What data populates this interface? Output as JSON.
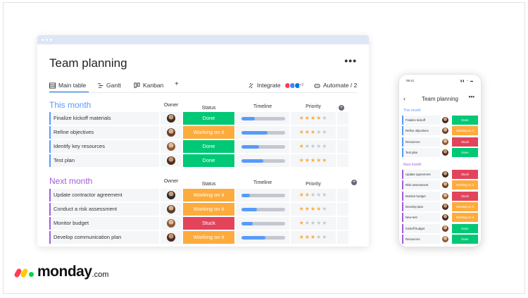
{
  "desktop": {
    "title": "Team planning",
    "more": "•••",
    "tabs": [
      {
        "label": "Main table",
        "icon": "table-icon"
      },
      {
        "label": "Gantt",
        "icon": "gantt-icon"
      },
      {
        "label": "Kanban",
        "icon": "kanban-icon"
      }
    ],
    "add_tab": "+",
    "integrate": "Integrate",
    "integrate_count": "+2",
    "automate": "Automate / 2",
    "columns": {
      "owner": "Owner",
      "status": "Status",
      "timeline": "Timeline",
      "priority": "Priority"
    },
    "groups": [
      {
        "title": "This month",
        "color": "#579bfc",
        "rows": [
          {
            "name": "Finalize kickoff materials",
            "status": "Done",
            "status_color": "#00c875",
            "timeline": 0.3,
            "priority": 4
          },
          {
            "name": "Refine objectives",
            "status": "Working on it",
            "status_color": "#fdab3d",
            "timeline": 0.6,
            "priority": 3
          },
          {
            "name": "Identify key resources",
            "status": "Done",
            "status_color": "#00c875",
            "timeline": 0.4,
            "priority": 1
          },
          {
            "name": "Test plan",
            "status": "Done",
            "status_color": "#00c875",
            "timeline": 0.5,
            "priority": 5
          }
        ]
      },
      {
        "title": "Next month",
        "color": "#a25ddc",
        "rows": [
          {
            "name": "Update contractor agreement",
            "status": "Working on it",
            "status_color": "#fdab3d",
            "timeline": 0.2,
            "priority": 2
          },
          {
            "name": "Conduct a risk assessment",
            "status": "Working on it",
            "status_color": "#fdab3d",
            "timeline": 0.35,
            "priority": 4
          },
          {
            "name": "Monitor budget",
            "status": "Stuck",
            "status_color": "#e2445c",
            "timeline": 0.25,
            "priority": 1
          },
          {
            "name": "Develop communication plan",
            "status": "Working on it",
            "status_color": "#fdab3d",
            "timeline": 0.55,
            "priority": 3
          }
        ]
      }
    ]
  },
  "phone": {
    "time": "09:41",
    "signal": "▮▮ ◔ ▬",
    "back": "‹",
    "title": "Team planning",
    "more": "•••",
    "groups": [
      {
        "title": "This month",
        "color": "#579bfc",
        "rows": [
          {
            "name": "Finalize kickoff",
            "status": "Done",
            "status_color": "#00c875"
          },
          {
            "name": "Refine objectives",
            "status": "Working on it",
            "status_color": "#fdab3d"
          },
          {
            "name": "Resources",
            "status": "Stuck",
            "status_color": "#e2445c"
          },
          {
            "name": "Test plan",
            "status": "Done",
            "status_color": "#00c875"
          }
        ]
      },
      {
        "title": "Next month",
        "color": "#a25ddc",
        "rows": [
          {
            "name": "Update agreement",
            "status": "Stuck",
            "status_color": "#e2445c"
          },
          {
            "name": "Risk assessment",
            "status": "Working on it",
            "status_color": "#fdab3d"
          },
          {
            "name": "Monitor budget",
            "status": "Stuck",
            "status_color": "#e2445c"
          },
          {
            "name": "Develop plan",
            "status": "Working on it",
            "status_color": "#fdab3d"
          },
          {
            "name": "New test",
            "status": "Working on it",
            "status_color": "#fdab3d"
          },
          {
            "name": "Kickoff budget",
            "status": "Done",
            "status_color": "#00c875"
          },
          {
            "name": "Resources",
            "status": "Done",
            "status_color": "#00c875"
          }
        ]
      }
    ]
  },
  "logo": {
    "text": "monday",
    "suffix": ".com",
    "colors": [
      "#ff3d57",
      "#ffcb00",
      "#00d647"
    ]
  }
}
